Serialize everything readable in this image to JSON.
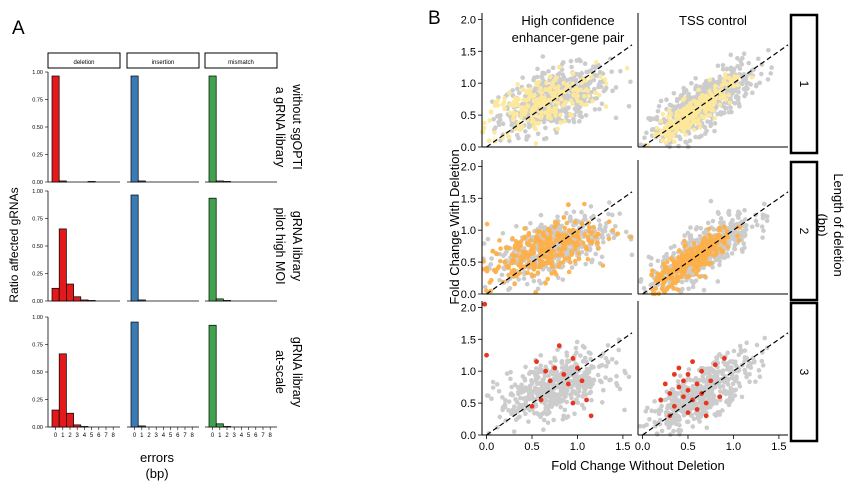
{
  "panel_a": {
    "panel_label": "A",
    "y_title": "Ratio affected gRNAs",
    "x_title_line1": "errors",
    "x_title_line2": "(bp)",
    "facet_cols": [
      "deletion",
      "insertion",
      "mismatch"
    ],
    "facet_rows": [
      [
        "a gRNA library",
        "without sgOPTI"
      ],
      [
        "pilot high MOI",
        "gRNA library"
      ],
      [
        "at-scale",
        "gRNA library"
      ]
    ],
    "x_ticks": [
      "0",
      "1",
      "2",
      "3",
      "4",
      "5",
      "6",
      "7",
      "8"
    ],
    "y_ticks": [
      "0.00",
      "0.25",
      "0.50",
      "0.75",
      "1.00"
    ],
    "colors": {
      "deletion": "#e31a1c",
      "insertion": "#3a7bb5",
      "mismatch": "#3fa34d"
    }
  },
  "panel_b": {
    "panel_label": "B",
    "col_titles": [
      [
        "High confidence",
        "enhancer-gene pair"
      ],
      [
        "TSS control"
      ]
    ],
    "row_strips": [
      "1",
      "2",
      "3"
    ],
    "strip_title": [
      "Length of deletion",
      "(bp)"
    ],
    "x_title": "Fold Change Without Deletion",
    "y_title": "Fold Change With Deletion",
    "x_ticks": [
      "0.0",
      "0.5",
      "1.0",
      "1.5"
    ],
    "y_ticks": [
      "0.0",
      "0.5",
      "1.0",
      "1.5",
      "2.0"
    ],
    "colors": {
      "background": "#cccccc",
      "row1": "#fde89a",
      "row2": "#fdb04a",
      "row3": "#e8361e"
    }
  },
  "chart_data": [
    {
      "type": "bar",
      "panel": "A",
      "ylim": [
        0,
        1
      ],
      "categories": [
        "0",
        "1",
        "2",
        "3",
        "4",
        "5",
        "6",
        "7",
        "8"
      ],
      "series": [
        {
          "name": "deletion | a gRNA library without sgOPTI",
          "values": [
            1.0,
            0.01,
            0,
            0,
            0,
            0.005,
            0,
            0,
            0
          ]
        },
        {
          "name": "insertion | a gRNA library without sgOPTI",
          "values": [
            1.0,
            0.01,
            0,
            0,
            0,
            0,
            0,
            0,
            0
          ]
        },
        {
          "name": "mismatch | a gRNA library without sgOPTI",
          "values": [
            1.0,
            0.01,
            0.005,
            0,
            0,
            0,
            0,
            0,
            0
          ]
        },
        {
          "name": "deletion | pilot high MOI gRNA library",
          "values": [
            0.12,
            0.68,
            0.16,
            0.04,
            0.01,
            0.005,
            0,
            0,
            0
          ]
        },
        {
          "name": "insertion | pilot high MOI gRNA library",
          "values": [
            1.0,
            0.01,
            0,
            0,
            0,
            0,
            0,
            0,
            0
          ]
        },
        {
          "name": "mismatch | pilot high MOI gRNA library",
          "values": [
            0.97,
            0.02,
            0.005,
            0,
            0,
            0,
            0,
            0,
            0
          ]
        },
        {
          "name": "deletion | at-scale gRNA library",
          "values": [
            0.16,
            0.69,
            0.13,
            0.02,
            0.005,
            0,
            0,
            0,
            0
          ]
        },
        {
          "name": "insertion | at-scale gRNA library",
          "values": [
            0.99,
            0.01,
            0,
            0,
            0,
            0,
            0,
            0,
            0
          ]
        },
        {
          "name": "mismatch | at-scale gRNA library",
          "values": [
            0.96,
            0.03,
            0.005,
            0,
            0,
            0,
            0,
            0,
            0
          ]
        }
      ]
    },
    {
      "type": "scatter",
      "panel": "B",
      "xlim": [
        -0.05,
        1.6
      ],
      "ylim": [
        0,
        2.1
      ],
      "reference_line": "y = x (dashed)",
      "facets": [
        {
          "row": "1",
          "col": "High confidence enhancer-gene pair",
          "n_gray": 520,
          "n_color": 200,
          "highlight": [
            [
              0.05,
              0.55
            ],
            [
              0.1,
              0.7
            ],
            [
              0.2,
              0.6
            ],
            [
              0.25,
              0.85
            ],
            [
              0.3,
              0.5
            ],
            [
              0.35,
              0.75
            ],
            [
              0.4,
              0.9
            ],
            [
              0.45,
              0.65
            ],
            [
              0.5,
              0.8
            ],
            [
              0.55,
              1.0
            ],
            [
              0.6,
              0.7
            ],
            [
              0.65,
              0.9
            ],
            [
              0.7,
              1.1
            ],
            [
              0.75,
              0.85
            ],
            [
              0.8,
              1.25
            ],
            [
              0.85,
              1.0
            ],
            [
              0.9,
              0.95
            ],
            [
              0.95,
              1.15
            ],
            [
              1.0,
              0.8
            ],
            [
              1.05,
              1.05
            ],
            [
              1.1,
              0.9
            ],
            [
              1.15,
              1.1
            ],
            [
              1.2,
              0.85
            ]
          ]
        },
        {
          "row": "1",
          "col": "TSS control",
          "n_gray": 520,
          "n_color": 220,
          "highlight": [
            [
              0.15,
              0.2
            ],
            [
              0.25,
              0.3
            ],
            [
              0.3,
              0.4
            ],
            [
              0.35,
              0.35
            ],
            [
              0.4,
              0.5
            ],
            [
              0.45,
              0.45
            ],
            [
              0.5,
              0.6
            ],
            [
              0.55,
              0.55
            ],
            [
              0.6,
              0.7
            ],
            [
              0.65,
              0.65
            ],
            [
              0.7,
              0.8
            ],
            [
              0.75,
              0.75
            ],
            [
              0.8,
              0.9
            ],
            [
              0.85,
              0.85
            ],
            [
              0.9,
              1.0
            ],
            [
              0.95,
              0.95
            ],
            [
              1.0,
              1.05
            ],
            [
              1.05,
              1.1
            ]
          ]
        },
        {
          "row": "2",
          "col": "High confidence enhancer-gene pair",
          "n_gray": 480,
          "n_color": 260,
          "highlight": [
            [
              0.0,
              0.4
            ],
            [
              0.1,
              0.35
            ],
            [
              0.2,
              0.5
            ],
            [
              0.3,
              0.6
            ],
            [
              0.35,
              0.8
            ],
            [
              0.4,
              0.55
            ],
            [
              0.5,
              0.7
            ],
            [
              0.55,
              0.9
            ],
            [
              0.6,
              0.75
            ],
            [
              0.7,
              0.85
            ],
            [
              0.75,
              1.05
            ],
            [
              0.8,
              0.9
            ],
            [
              0.85,
              1.2
            ],
            [
              0.9,
              0.8
            ],
            [
              0.95,
              1.0
            ],
            [
              1.0,
              0.95
            ],
            [
              1.05,
              1.1
            ],
            [
              1.1,
              0.7
            ],
            [
              1.2,
              0.9
            ],
            [
              0.9,
              1.4
            ]
          ]
        },
        {
          "row": "2",
          "col": "TSS control",
          "n_gray": 480,
          "n_color": 300,
          "highlight": [
            [
              0.1,
              0.3
            ],
            [
              0.2,
              0.25
            ],
            [
              0.25,
              0.4
            ],
            [
              0.3,
              0.35
            ],
            [
              0.35,
              0.5
            ],
            [
              0.4,
              0.45
            ],
            [
              0.45,
              0.6
            ],
            [
              0.5,
              0.55
            ],
            [
              0.55,
              0.7
            ],
            [
              0.6,
              0.65
            ],
            [
              0.65,
              0.75
            ],
            [
              0.7,
              0.8
            ],
            [
              0.75,
              0.9
            ],
            [
              0.8,
              0.85
            ],
            [
              0.85,
              1.0
            ],
            [
              0.9,
              1.05
            ]
          ]
        },
        {
          "row": "3",
          "col": "High confidence enhancer-gene pair",
          "n_gray": 500,
          "n_color": 0,
          "highlight": [
            [
              -0.02,
              2.05
            ],
            [
              0.0,
              1.25
            ],
            [
              0.55,
              1.15
            ],
            [
              0.65,
              1.0
            ],
            [
              0.7,
              0.85
            ],
            [
              0.75,
              1.05
            ],
            [
              0.8,
              1.4
            ],
            [
              0.85,
              0.95
            ],
            [
              0.9,
              0.8
            ],
            [
              0.95,
              1.2
            ],
            [
              1.0,
              1.05
            ],
            [
              1.05,
              0.85
            ],
            [
              1.1,
              0.55
            ],
            [
              1.15,
              0.3
            ],
            [
              0.6,
              0.55
            ],
            [
              0.5,
              0.45
            ],
            [
              0.95,
              0.5
            ]
          ]
        },
        {
          "row": "3",
          "col": "TSS control",
          "n_gray": 500,
          "n_color": 0,
          "highlight": [
            [
              0.2,
              0.55
            ],
            [
              0.25,
              0.8
            ],
            [
              0.3,
              0.65
            ],
            [
              0.35,
              0.95
            ],
            [
              0.35,
              0.45
            ],
            [
              0.4,
              0.75
            ],
            [
              0.4,
              1.05
            ],
            [
              0.45,
              0.6
            ],
            [
              0.45,
              0.85
            ],
            [
              0.5,
              0.7
            ],
            [
              0.5,
              0.95
            ],
            [
              0.55,
              0.55
            ],
            [
              0.55,
              1.15
            ],
            [
              0.6,
              0.8
            ],
            [
              0.6,
              0.4
            ],
            [
              0.65,
              0.65
            ],
            [
              0.65,
              1.0
            ],
            [
              0.7,
              0.5
            ],
            [
              0.75,
              0.85
            ],
            [
              0.8,
              1.1
            ],
            [
              0.85,
              0.6
            ],
            [
              0.9,
              1.2
            ],
            [
              0.5,
              0.35
            ],
            [
              0.3,
              0.3
            ],
            [
              0.7,
              0.3
            ]
          ]
        }
      ]
    }
  ]
}
